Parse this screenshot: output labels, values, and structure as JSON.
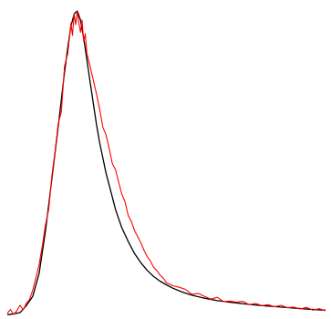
{
  "chart_data": {
    "type": "line",
    "title": "",
    "xlabel": "",
    "ylabel": "",
    "axes_visible": false,
    "grid": false,
    "legend": "none",
    "xlim": [
      0,
      100
    ],
    "ylim": [
      0,
      100
    ],
    "series": [
      {
        "color": "#000000",
        "style": "smooth fitted curve",
        "x": [
          0,
          2,
          4,
          6,
          8,
          10,
          12,
          14,
          16,
          17,
          18,
          19,
          20,
          21,
          22,
          23,
          24,
          25,
          26,
          27,
          28,
          29,
          30,
          31,
          32,
          33,
          34,
          35,
          36,
          38,
          40,
          42,
          44,
          46,
          48,
          50,
          52,
          55,
          58,
          62,
          66,
          70,
          75,
          80,
          85,
          90,
          95,
          100
        ],
        "values": [
          0.5,
          0.8,
          1.2,
          3.5,
          6.5,
          14,
          28,
          45,
          62,
          71,
          80,
          88,
          95,
          99,
          100,
          97,
          91,
          84,
          77,
          70,
          63,
          57,
          52,
          47,
          43,
          39,
          35,
          32,
          29,
          24.5,
          20.5,
          17.5,
          15,
          13,
          11.5,
          10.3,
          9.2,
          7.9,
          6.9,
          5.9,
          5.1,
          4.6,
          4,
          3.5,
          3.1,
          2.7,
          2.3,
          2
        ]
      },
      {
        "color": "#ff0000",
        "style": "noisy measured trace",
        "x": [
          0,
          1,
          2,
          3,
          4,
          5,
          6,
          7,
          8,
          9,
          10,
          11,
          12,
          13,
          14,
          15,
          16,
          17,
          18,
          19,
          20,
          20.5,
          21,
          21.5,
          22,
          22.5,
          23,
          23.5,
          24,
          24.5,
          25,
          26,
          27,
          28,
          29,
          30,
          31,
          32,
          33,
          34,
          35,
          36,
          37,
          38,
          39,
          40,
          41,
          42,
          43,
          44,
          45,
          46,
          47,
          48,
          49,
          50,
          52,
          54,
          56,
          58,
          60,
          62,
          64,
          66,
          68,
          70,
          72,
          74,
          76,
          78,
          80,
          82,
          84,
          86,
          88,
          90,
          92,
          94,
          96,
          98,
          100
        ],
        "values": [
          1,
          2.2,
          0.6,
          1.8,
          3.6,
          2.1,
          4.2,
          5.5,
          8.5,
          12.6,
          17,
          23,
          30,
          35,
          46,
          54,
          63,
          67,
          82,
          86,
          96,
          92,
          99,
          95.5,
          100,
          96,
          93,
          97,
          90,
          92.5,
          86,
          82,
          77.5,
          73,
          68,
          62,
          59.5,
          55,
          50,
          48,
          44,
          40,
          37.5,
          33,
          31,
          28,
          26,
          24,
          21.5,
          19.5,
          18,
          16,
          15,
          13.5,
          12.5,
          11,
          10,
          9.5,
          8.8,
          7.2,
          7.5,
          6.5,
          5.6,
          6.2,
          4.8,
          5,
          4.6,
          4.9,
          3.8,
          4.2,
          3.5,
          3.8,
          3.1,
          3.6,
          2.8,
          3,
          2.4,
          2.9,
          2,
          2.5,
          1.8
        ]
      }
    ]
  }
}
